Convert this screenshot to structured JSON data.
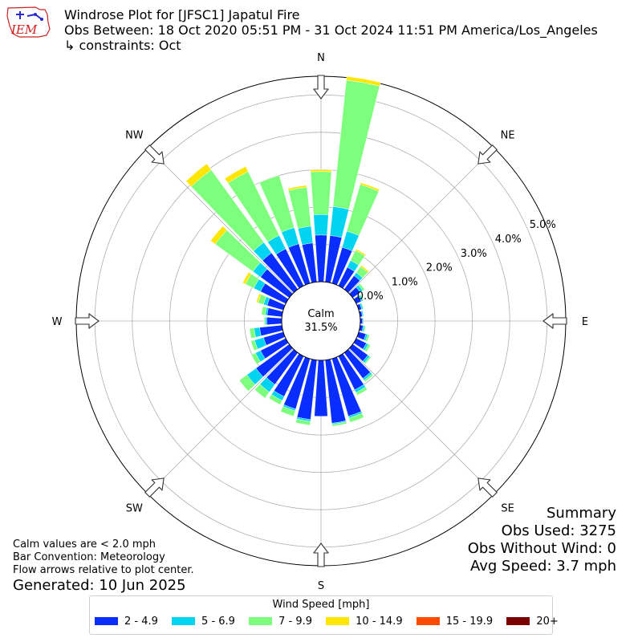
{
  "title": {
    "line1": "Windrose Plot for [JFSC1] Japatul Fire",
    "line2": "Obs Between: 18 Oct 2020 05:51 PM - 31 Oct 2024 11:51 PM America/Los_Angeles",
    "line3": "↳ constraints: Oct"
  },
  "logo": {
    "text": "IEM"
  },
  "summary": {
    "heading": "Summary",
    "obs_used": "Obs Used: 3275",
    "obs_without_wind": "Obs Without Wind: 0",
    "avg_speed": "Avg Speed: 3.7 mph"
  },
  "notes": {
    "calm": "Calm values are < 2.0 mph",
    "convention": "Bar Convention: Meteorology",
    "flow": "Flow arrows relative to plot center.",
    "generated": "Generated: 10 Jun 2025"
  },
  "legend": {
    "title": "Wind Speed [mph]",
    "items": [
      "2 - 4.9",
      "5 - 6.9",
      "7 - 9.9",
      "10 - 14.9",
      "15 - 19.9",
      "20+"
    ]
  },
  "colors": [
    "#0a2dff",
    "#00d4f0",
    "#7dff7d",
    "#ffe600",
    "#ff4a00",
    "#7a0000"
  ],
  "chart_data": {
    "type": "windrose",
    "calm_label": "Calm",
    "calm_pct_label": "31.5%",
    "calm_pct": 31.5,
    "directions": [
      "N",
      "NE",
      "E",
      "SE",
      "S",
      "SW",
      "W",
      "NW"
    ],
    "radial_ticks": [
      "0.0%",
      "1.0%",
      "2.0%",
      "3.0%",
      "4.0%",
      "5.0%"
    ],
    "rmax": 5.5,
    "bin_width_deg": 10,
    "series_names": [
      "2 - 4.9",
      "5 - 6.9",
      "7 - 9.9",
      "10 - 14.9",
      "15 - 19.9",
      "20+"
    ],
    "bins": [
      {
        "dir": 0,
        "v": [
          1.25,
          0.55,
          1.15,
          0.05,
          0,
          0
        ]
      },
      {
        "dir": 10,
        "v": [
          1.25,
          0.78,
          3.4,
          0.1,
          0,
          0
        ]
      },
      {
        "dir": 20,
        "v": [
          1.0,
          0.45,
          1.3,
          0.05,
          0,
          0
        ]
      },
      {
        "dir": 30,
        "v": [
          0.55,
          0.2,
          0.3,
          0.04,
          0,
          0
        ]
      },
      {
        "dir": 40,
        "v": [
          0.45,
          0.1,
          0.2,
          0.04,
          0,
          0
        ]
      },
      {
        "dir": 50,
        "v": [
          0.25,
          0.08,
          0.06,
          0,
          0,
          0
        ]
      },
      {
        "dir": 60,
        "v": [
          0.15,
          0.05,
          0.02,
          0,
          0,
          0
        ]
      },
      {
        "dir": 70,
        "v": [
          0.08,
          0.04,
          0.02,
          0,
          0,
          0
        ]
      },
      {
        "dir": 80,
        "v": [
          0.06,
          0.03,
          0,
          0,
          0,
          0
        ]
      },
      {
        "dir": 90,
        "v": [
          0.06,
          0.02,
          0,
          0,
          0,
          0
        ]
      },
      {
        "dir": 100,
        "v": [
          0.08,
          0.04,
          0.03,
          0,
          0,
          0
        ]
      },
      {
        "dir": 110,
        "v": [
          0.2,
          0.05,
          0.05,
          0,
          0,
          0
        ]
      },
      {
        "dir": 120,
        "v": [
          0.3,
          0.06,
          0.06,
          0,
          0,
          0
        ]
      },
      {
        "dir": 130,
        "v": [
          0.5,
          0.06,
          0.04,
          0,
          0,
          0
        ]
      },
      {
        "dir": 140,
        "v": [
          0.85,
          0.06,
          0.05,
          0,
          0,
          0
        ]
      },
      {
        "dir": 150,
        "v": [
          1.0,
          0.08,
          0.08,
          0,
          0,
          0
        ]
      },
      {
        "dir": 160,
        "v": [
          1.6,
          0.05,
          0.12,
          0,
          0,
          0
        ]
      },
      {
        "dir": 170,
        "v": [
          1.7,
          0.03,
          0.05,
          0,
          0,
          0
        ]
      },
      {
        "dir": 180,
        "v": [
          1.5,
          0,
          0,
          0,
          0,
          0
        ]
      },
      {
        "dir": 190,
        "v": [
          1.6,
          0.05,
          0.1,
          0,
          0,
          0
        ]
      },
      {
        "dir": 200,
        "v": [
          1.4,
          0.05,
          0.15,
          0,
          0,
          0
        ]
      },
      {
        "dir": 210,
        "v": [
          1.2,
          0.12,
          0.12,
          0,
          0,
          0
        ]
      },
      {
        "dir": 220,
        "v": [
          1.05,
          0.25,
          0.2,
          0,
          0,
          0
        ]
      },
      {
        "dir": 230,
        "v": [
          1.1,
          0.3,
          0.25,
          0,
          0,
          0
        ]
      },
      {
        "dir": 240,
        "v": [
          0.75,
          0.15,
          0.12,
          0,
          0,
          0
        ]
      },
      {
        "dir": 250,
        "v": [
          0.55,
          0.25,
          0.1,
          0,
          0,
          0
        ]
      },
      {
        "dir": 260,
        "v": [
          0.6,
          0.15,
          0.12,
          0,
          0,
          0
        ]
      },
      {
        "dir": 270,
        "v": [
          0.4,
          0.04,
          0.03,
          0,
          0,
          0
        ]
      },
      {
        "dir": 280,
        "v": [
          0.4,
          0.05,
          0.1,
          0,
          0,
          0
        ]
      },
      {
        "dir": 290,
        "v": [
          0.45,
          0.1,
          0.15,
          0.05,
          0,
          0
        ]
      },
      {
        "dir": 300,
        "v": [
          0.75,
          0.2,
          0.25,
          0.08,
          0,
          0
        ]
      },
      {
        "dir": 310,
        "v": [
          0.95,
          0.25,
          1.25,
          0.15,
          0,
          0
        ]
      },
      {
        "dir": 320,
        "v": [
          1.2,
          0.35,
          2.4,
          0.2,
          0,
          0
        ]
      },
      {
        "dir": 330,
        "v": [
          1.1,
          0.4,
          1.9,
          0.15,
          0,
          0
        ]
      },
      {
        "dir": 340,
        "v": [
          1.1,
          0.45,
          1.45,
          0,
          0,
          0
        ]
      },
      {
        "dir": 350,
        "v": [
          1.05,
          0.45,
          1.05,
          0.05,
          0,
          0
        ]
      }
    ]
  }
}
